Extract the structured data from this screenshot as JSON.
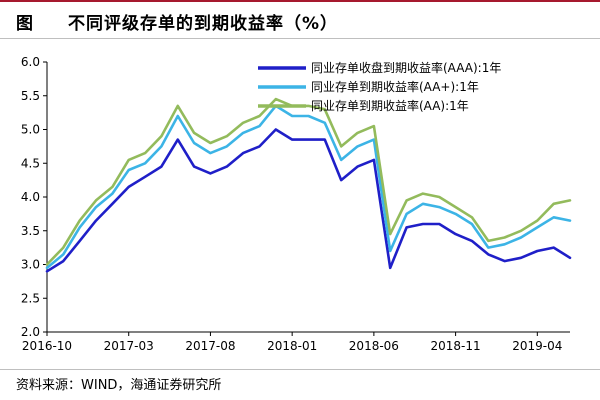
{
  "header": {
    "label": "图",
    "title": "不同评级存单的到期收益率（%）"
  },
  "source": "资料来源：WIND，海通证券研究所",
  "chart_data": {
    "type": "line",
    "xlabel": "",
    "ylabel": "",
    "ylim": [
      2.0,
      6.0
    ],
    "yticks": [
      "2.0",
      "2.5",
      "3.0",
      "3.5",
      "4.0",
      "4.5",
      "5.0",
      "5.5",
      "6.0"
    ],
    "xticks": [
      "2016-10",
      "2017-03",
      "2017-08",
      "2018-01",
      "2018-06",
      "2018-11",
      "2019-04"
    ],
    "x_range": [
      "2016-10",
      "2019-06"
    ],
    "grid": false,
    "legend_position": "top-right",
    "series": [
      {
        "name": "同业存单收盘到期收益率(AAA):1年",
        "color": "#1f1fc8",
        "width": 2.6,
        "points": [
          [
            "2016-10",
            2.9
          ],
          [
            "2016-11",
            3.05
          ],
          [
            "2016-12",
            3.35
          ],
          [
            "2017-01",
            3.65
          ],
          [
            "2017-02",
            3.9
          ],
          [
            "2017-03",
            4.15
          ],
          [
            "2017-04",
            4.3
          ],
          [
            "2017-05",
            4.45
          ],
          [
            "2017-06",
            4.85
          ],
          [
            "2017-07",
            4.45
          ],
          [
            "2017-08",
            4.35
          ],
          [
            "2017-09",
            4.45
          ],
          [
            "2017-10",
            4.65
          ],
          [
            "2017-11",
            4.75
          ],
          [
            "2017-12",
            5.0
          ],
          [
            "2018-01",
            4.85
          ],
          [
            "2018-02",
            4.85
          ],
          [
            "2018-03",
            4.85
          ],
          [
            "2018-04",
            4.25
          ],
          [
            "2018-05",
            4.45
          ],
          [
            "2018-06",
            4.55
          ],
          [
            "2018-07",
            2.95
          ],
          [
            "2018-08",
            3.55
          ],
          [
            "2018-09",
            3.6
          ],
          [
            "2018-10",
            3.6
          ],
          [
            "2018-11",
            3.45
          ],
          [
            "2018-12",
            3.35
          ],
          [
            "2019-01",
            3.15
          ],
          [
            "2019-02",
            3.05
          ],
          [
            "2019-03",
            3.1
          ],
          [
            "2019-04",
            3.2
          ],
          [
            "2019-05",
            3.25
          ],
          [
            "2019-06",
            3.1
          ]
        ]
      },
      {
        "name": "同业存单到期收益率(AA+):1年",
        "color": "#3cb4e6",
        "width": 2.6,
        "points": [
          [
            "2016-10",
            2.95
          ],
          [
            "2016-11",
            3.15
          ],
          [
            "2016-12",
            3.55
          ],
          [
            "2017-01",
            3.85
          ],
          [
            "2017-02",
            4.05
          ],
          [
            "2017-03",
            4.4
          ],
          [
            "2017-04",
            4.5
          ],
          [
            "2017-05",
            4.75
          ],
          [
            "2017-06",
            5.2
          ],
          [
            "2017-07",
            4.8
          ],
          [
            "2017-08",
            4.65
          ],
          [
            "2017-09",
            4.75
          ],
          [
            "2017-10",
            4.95
          ],
          [
            "2017-11",
            5.05
          ],
          [
            "2017-12",
            5.35
          ],
          [
            "2018-01",
            5.2
          ],
          [
            "2018-02",
            5.2
          ],
          [
            "2018-03",
            5.1
          ],
          [
            "2018-04",
            4.55
          ],
          [
            "2018-05",
            4.75
          ],
          [
            "2018-06",
            4.85
          ],
          [
            "2018-07",
            3.2
          ],
          [
            "2018-08",
            3.75
          ],
          [
            "2018-09",
            3.9
          ],
          [
            "2018-10",
            3.85
          ],
          [
            "2018-11",
            3.75
          ],
          [
            "2018-12",
            3.6
          ],
          [
            "2019-01",
            3.25
          ],
          [
            "2019-02",
            3.3
          ],
          [
            "2019-03",
            3.4
          ],
          [
            "2019-04",
            3.55
          ],
          [
            "2019-05",
            3.7
          ],
          [
            "2019-06",
            3.65
          ]
        ]
      },
      {
        "name": "同业存单到期收益率(AA):1年",
        "color": "#93bb5c",
        "width": 2.6,
        "points": [
          [
            "2016-10",
            3.0
          ],
          [
            "2016-11",
            3.25
          ],
          [
            "2016-12",
            3.65
          ],
          [
            "2017-01",
            3.95
          ],
          [
            "2017-02",
            4.15
          ],
          [
            "2017-03",
            4.55
          ],
          [
            "2017-04",
            4.65
          ],
          [
            "2017-05",
            4.9
          ],
          [
            "2017-06",
            5.35
          ],
          [
            "2017-07",
            4.95
          ],
          [
            "2017-08",
            4.8
          ],
          [
            "2017-09",
            4.9
          ],
          [
            "2017-10",
            5.1
          ],
          [
            "2017-11",
            5.2
          ],
          [
            "2017-12",
            5.45
          ],
          [
            "2018-01",
            5.35
          ],
          [
            "2018-02",
            5.35
          ],
          [
            "2018-03",
            5.3
          ],
          [
            "2018-04",
            4.75
          ],
          [
            "2018-05",
            4.95
          ],
          [
            "2018-06",
            5.05
          ],
          [
            "2018-07",
            3.45
          ],
          [
            "2018-08",
            3.95
          ],
          [
            "2018-09",
            4.05
          ],
          [
            "2018-10",
            4.0
          ],
          [
            "2018-11",
            3.85
          ],
          [
            "2018-12",
            3.7
          ],
          [
            "2019-01",
            3.35
          ],
          [
            "2019-02",
            3.4
          ],
          [
            "2019-03",
            3.5
          ],
          [
            "2019-04",
            3.65
          ],
          [
            "2019-05",
            3.9
          ],
          [
            "2019-06",
            3.95
          ]
        ]
      }
    ]
  }
}
